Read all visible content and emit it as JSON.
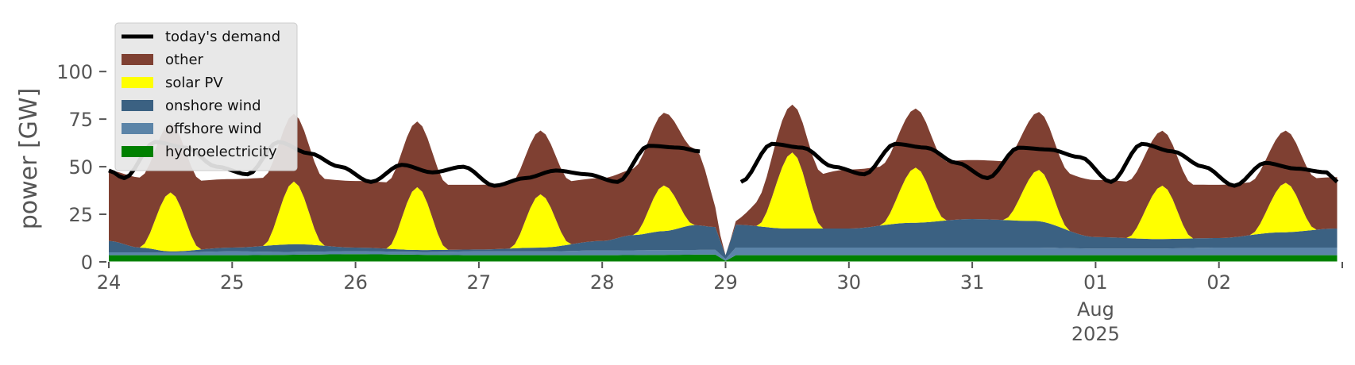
{
  "chart_data": {
    "type": "area",
    "title": "",
    "xlabel": "",
    "ylabel": "power [GW]",
    "ylim": [
      0,
      118
    ],
    "yticks": [
      0,
      25,
      50,
      75,
      100
    ],
    "x_range_days": [
      "2025-07-24",
      "2025-08-02 23:00"
    ],
    "x_ticks": [
      {
        "day": 0,
        "label": "24"
      },
      {
        "day": 1,
        "label": "25"
      },
      {
        "day": 2,
        "label": "26"
      },
      {
        "day": 3,
        "label": "27"
      },
      {
        "day": 4,
        "label": "28"
      },
      {
        "day": 5,
        "label": "29"
      },
      {
        "day": 6,
        "label": "30"
      },
      {
        "day": 7,
        "label": "31"
      },
      {
        "day": 8,
        "label": "01",
        "sub": [
          "Aug",
          "2025"
        ]
      },
      {
        "day": 9,
        "label": "02"
      }
    ],
    "legend_position": "upper-left",
    "grid": false,
    "series": [
      {
        "name": "hydroelectricity",
        "color": "#008000",
        "kind": "area",
        "x": [
          "2025-07-24",
          "2025-07-25",
          "2025-07-26",
          "2025-07-27",
          "2025-07-28",
          "2025-07-28 22:00",
          "2025-07-29 00:00",
          "2025-07-29 02:00",
          "2025-07-30",
          "2025-07-31",
          "2025-08-01",
          "2025-08-02",
          "2025-08-02 23:00"
        ],
        "values": [
          3.5,
          3.5,
          4,
          3.5,
          3.5,
          3.8,
          0.5,
          3.5,
          3.5,
          3.5,
          3.5,
          3.5,
          3.5
        ]
      },
      {
        "name": "offshore wind",
        "color": "#5b84a8",
        "kind": "area",
        "x": [
          "2025-07-24",
          "2025-07-24 12:00",
          "2025-07-25",
          "2025-07-25 12:00",
          "2025-07-26",
          "2025-07-26 12:00",
          "2025-07-27",
          "2025-07-27 12:00",
          "2025-07-28",
          "2025-07-28 12:00",
          "2025-07-28 22:00",
          "2025-07-29 00:00",
          "2025-07-29 02:00",
          "2025-07-29 12:00",
          "2025-07-30",
          "2025-07-30 12:00",
          "2025-07-31",
          "2025-07-31 12:00",
          "2025-08-01",
          "2025-08-01 12:00",
          "2025-08-02",
          "2025-08-02 12:00",
          "2025-08-02 23:00"
        ],
        "values": [
          1.5,
          1.5,
          2,
          1.5,
          1.5,
          1.5,
          2,
          2,
          2.5,
          2.5,
          2.5,
          1,
          4,
          4,
          4,
          4,
          4,
          4,
          3.5,
          3.5,
          4,
          4,
          4
        ]
      },
      {
        "name": "onshore wind",
        "color": "#3b6182",
        "kind": "area",
        "x": [
          "2025-07-24",
          "2025-07-24 06:00",
          "2025-07-24 12:00",
          "2025-07-25",
          "2025-07-25 12:00",
          "2025-07-26",
          "2025-07-26 12:00",
          "2025-07-27",
          "2025-07-27 12:00",
          "2025-07-28",
          "2025-07-28 06:00",
          "2025-07-28 12:00",
          "2025-07-28 18:00",
          "2025-07-28 22:00",
          "2025-07-29 00:00",
          "2025-07-29 02:00",
          "2025-07-29 12:00",
          "2025-07-30",
          "2025-07-30 12:00",
          "2025-07-31",
          "2025-07-31 12:00",
          "2025-08-01",
          "2025-08-01 12:00",
          "2025-08-02",
          "2025-08-02 12:00",
          "2025-08-02 23:00"
        ],
        "values": [
          6,
          2.5,
          0.5,
          2,
          4,
          2,
          1,
          1,
          2,
          5,
          8,
          10,
          13,
          12,
          2,
          12,
          10,
          10,
          13,
          15,
          14,
          6,
          5,
          5,
          8,
          10
        ]
      },
      {
        "name": "solar PV",
        "color": "#ffff00",
        "kind": "area",
        "x": [
          "2025-07-24 06:00",
          "2025-07-24 12:00",
          "2025-07-24 18:00",
          "2025-07-25 06:00",
          "2025-07-25 12:00",
          "2025-07-25 18:00",
          "2025-07-26 06:00",
          "2025-07-26 12:00",
          "2025-07-26 18:00",
          "2025-07-27 06:00",
          "2025-07-27 12:00",
          "2025-07-27 18:00",
          "2025-07-28 06:00",
          "2025-07-28 12:00",
          "2025-07-28 18:00",
          "2025-07-29 06:00",
          "2025-07-29 13:00",
          "2025-07-29 19:00",
          "2025-07-30 06:00",
          "2025-07-30 13:00",
          "2025-07-30 19:00",
          "2025-07-31 06:00",
          "2025-07-31 13:00",
          "2025-07-31 19:00",
          "2025-08-01 06:00",
          "2025-08-01 13:00",
          "2025-08-01 19:00",
          "2025-08-02 06:00",
          "2025-08-02 13:00",
          "2025-08-02 19:00"
        ],
        "values": [
          0,
          31,
          0,
          0,
          33,
          0,
          0,
          33,
          0,
          0,
          28,
          0,
          0,
          24,
          0,
          0,
          40,
          0,
          0,
          29,
          0,
          0,
          27,
          0,
          0,
          28,
          0,
          0,
          26,
          0
        ]
      },
      {
        "name": "other",
        "color": "#7f4032",
        "kind": "area",
        "x": [
          "2025-07-24",
          "2025-07-25",
          "2025-07-26",
          "2025-07-27",
          "2025-07-28",
          "2025-07-28 18:00",
          "2025-07-29 00:00",
          "2025-07-29 12:00",
          "2025-07-30",
          "2025-07-31",
          "2025-08-01",
          "2025-08-02",
          "2025-08-02 23:00"
        ],
        "values": [
          37,
          36,
          35,
          34,
          33,
          40,
          0,
          25,
          31,
          31,
          30,
          28,
          27
        ]
      },
      {
        "name": "today's demand",
        "color": "#000000",
        "kind": "line",
        "x": [
          "2025-07-24",
          "2025-07-24 03:00",
          "2025-07-24 09:00",
          "2025-07-24 15:00",
          "2025-07-24 21:00",
          "2025-07-25 03:00",
          "2025-07-25 09:00",
          "2025-07-25 15:00",
          "2025-07-25 21:00",
          "2025-07-26 03:00",
          "2025-07-26 09:00",
          "2025-07-26 15:00",
          "2025-07-26 21:00",
          "2025-07-27 03:00",
          "2025-07-27 09:00",
          "2025-07-27 15:00",
          "2025-07-27 21:00",
          "2025-07-28 03:00",
          "2025-07-28 09:00",
          "2025-07-28 15:00",
          "2025-07-28 19:00",
          "2025-07-28 22:00",
          "2025-07-29 03:00",
          "2025-07-29 09:00",
          "2025-07-29 15:00",
          "2025-07-29 21:00",
          "2025-07-30 03:00",
          "2025-07-30 09:00",
          "2025-07-30 15:00",
          "2025-07-30 21:00",
          "2025-07-31 03:00",
          "2025-07-31 09:00",
          "2025-07-31 15:00",
          "2025-07-31 21:00",
          "2025-08-01 03:00",
          "2025-08-01 09:00",
          "2025-08-01 15:00",
          "2025-08-01 21:00",
          "2025-08-02 03:00",
          "2025-08-02 09:00",
          "2025-08-02 15:00",
          "2025-08-02 21:00",
          "2025-08-02 23:00"
        ],
        "values": [
          48,
          44,
          63,
          60,
          50,
          46,
          63,
          57,
          50,
          42,
          51,
          47,
          50,
          40,
          44,
          48,
          46,
          42,
          61,
          60,
          58,
          null,
          42,
          62,
          60,
          50,
          46,
          62,
          60,
          52,
          44,
          60,
          59,
          55,
          42,
          62,
          58,
          50,
          40,
          52,
          49,
          47,
          42
        ]
      }
    ],
    "legend_order": [
      "today's demand",
      "other",
      "solar PV",
      "onshore wind",
      "offshore wind",
      "hydroelectricity"
    ]
  }
}
